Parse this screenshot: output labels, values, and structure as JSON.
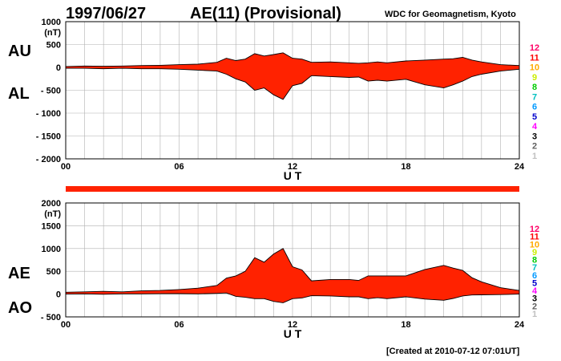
{
  "header": {
    "date": "1997/06/27",
    "index_title": "AE(11) (Provisional)",
    "source": "WDC for Geomagnetism, Kyoto"
  },
  "footer": {
    "created": "[Created at 2010-07-12 07:01UT]"
  },
  "colors": {
    "fill": "#ff2200",
    "separator_bar": "#ff2200",
    "grid": "#b0b0b0",
    "month_legend": [
      "#c0c0c0",
      "#606060",
      "#000000",
      "#ff00ff",
      "#0000cc",
      "#0099ff",
      "#00c0c0",
      "#00cc00",
      "#ccee00",
      "#ffaa00",
      "#ff0000",
      "#ff0066"
    ]
  },
  "month_legend": [
    "1",
    "2",
    "3",
    "4",
    "5",
    "6",
    "7",
    "8",
    "9",
    "10",
    "11",
    "12"
  ],
  "chart_data": [
    {
      "type": "area",
      "panel": "AU / AL",
      "series_labels": [
        "AU",
        "AL"
      ],
      "xlabel": "U T",
      "ylabel_unit": "(nT)",
      "x_ticks": [
        "00",
        "06",
        "12",
        "18",
        "24"
      ],
      "y_ticks": [
        "1000",
        "500",
        "0",
        "- 500",
        "- 1000",
        "- 1500",
        "- 2000"
      ],
      "xlim": [
        0,
        24
      ],
      "ylim": [
        -2000,
        1000
      ],
      "grid": true,
      "x": [
        0,
        1,
        2,
        3,
        4,
        5,
        6,
        7,
        8,
        8.5,
        9,
        9.5,
        10,
        10.5,
        11,
        11.5,
        12,
        12.5,
        13,
        14,
        15,
        15.5,
        16,
        16.5,
        17,
        18,
        19,
        20,
        20.5,
        21,
        21.5,
        22,
        23,
        24
      ],
      "series": [
        {
          "name": "AU",
          "values": [
            20,
            30,
            25,
            30,
            40,
            45,
            60,
            70,
            110,
            200,
            150,
            180,
            300,
            250,
            280,
            320,
            200,
            180,
            110,
            120,
            100,
            90,
            100,
            120,
            100,
            140,
            160,
            180,
            190,
            220,
            160,
            120,
            60,
            40
          ]
        },
        {
          "name": "AL",
          "values": [
            -20,
            -20,
            -30,
            -20,
            -30,
            -30,
            -40,
            -60,
            -80,
            -150,
            -250,
            -320,
            -500,
            -450,
            -600,
            -700,
            -400,
            -350,
            -180,
            -200,
            -220,
            -210,
            -300,
            -280,
            -300,
            -260,
            -380,
            -450,
            -380,
            -300,
            -200,
            -150,
            -80,
            -40
          ]
        }
      ]
    },
    {
      "type": "area",
      "panel": "AE / AO",
      "series_labels": [
        "AE",
        "AO"
      ],
      "xlabel": "U T",
      "ylabel_unit": "(nT)",
      "x_ticks": [
        "00",
        "06",
        "12",
        "18",
        "24"
      ],
      "y_ticks": [
        "2000",
        "1500",
        "1000",
        "500",
        "0",
        "- 500"
      ],
      "xlim": [
        0,
        24
      ],
      "ylim": [
        -500,
        2000
      ],
      "grid": true,
      "x": [
        0,
        1,
        2,
        3,
        4,
        5,
        6,
        7,
        8,
        8.5,
        9,
        9.5,
        10,
        10.5,
        11,
        11.5,
        12,
        12.5,
        13,
        14,
        15,
        15.5,
        16,
        16.5,
        17,
        18,
        19,
        20,
        20.5,
        21,
        21.5,
        22,
        23,
        24
      ],
      "series": [
        {
          "name": "AE",
          "values": [
            40,
            50,
            60,
            50,
            70,
            80,
            100,
            130,
            190,
            350,
            400,
            500,
            800,
            700,
            880,
            1000,
            600,
            530,
            290,
            320,
            320,
            300,
            400,
            400,
            400,
            400,
            540,
            630,
            570,
            520,
            360,
            270,
            140,
            80
          ]
        },
        {
          "name": "AO",
          "values": [
            0,
            5,
            -3,
            5,
            5,
            8,
            10,
            5,
            15,
            25,
            -50,
            -70,
            -100,
            -100,
            -160,
            -190,
            -100,
            -85,
            -35,
            -40,
            -60,
            -60,
            -100,
            -80,
            -100,
            -60,
            -110,
            -135,
            -95,
            -40,
            -20,
            -15,
            -10,
            0
          ]
        }
      ]
    }
  ]
}
